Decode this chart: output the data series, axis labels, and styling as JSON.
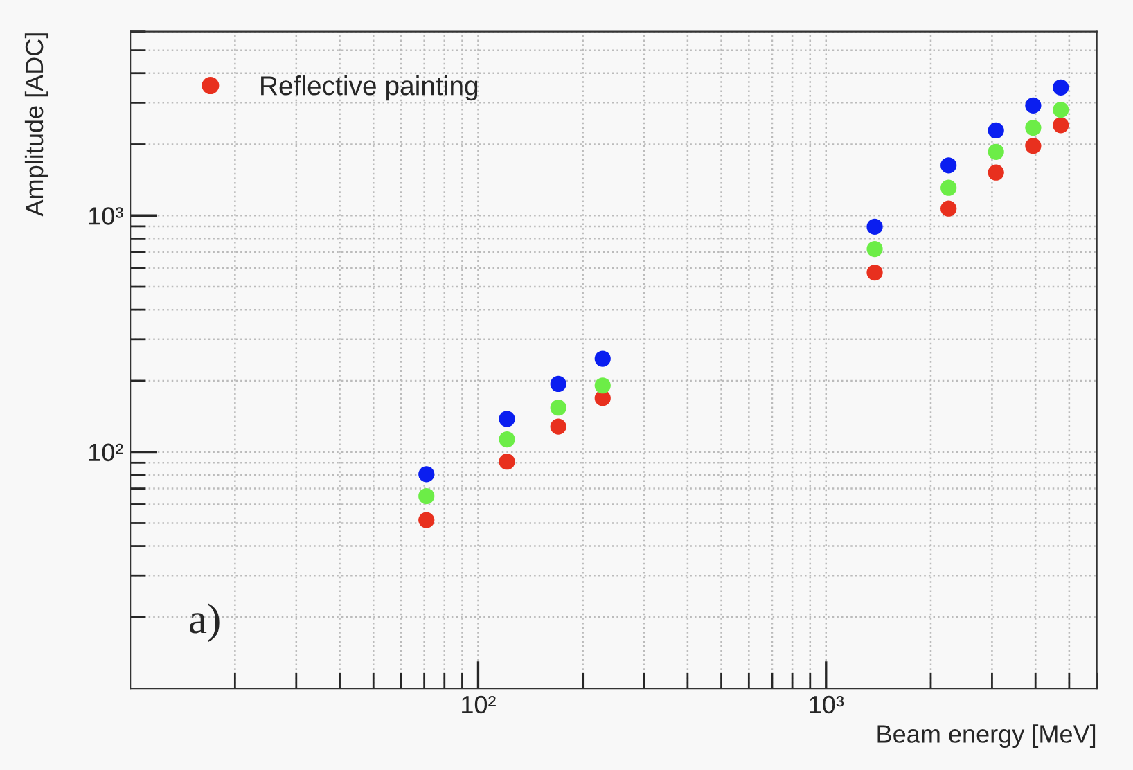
{
  "chart_data": {
    "type": "scatter",
    "xlabel": "Beam energy [MeV]",
    "ylabel": "Amplitude [ADC]",
    "x": [
      71,
      121,
      170,
      228,
      1380,
      2250,
      3080,
      3940,
      4730
    ],
    "series": [
      {
        "name": "Reflective painting",
        "color": "#e8301e",
        "values": [
          51.5,
          91,
          128,
          169,
          574,
          1070,
          1520,
          1970,
          2410
        ]
      },
      {
        "color": "#0a1ef0",
        "values": [
          80.5,
          138,
          194,
          248,
          897,
          1630,
          2290,
          2920,
          3480
        ]
      },
      {
        "color": "#6ced47",
        "values": [
          65,
          113,
          154,
          191,
          722,
          1310,
          1860,
          2350,
          2800
        ]
      }
    ],
    "log": "xy",
    "xlim": [
      10,
      6000
    ],
    "ylim": [
      10,
      6000
    ],
    "xticks": [
      {
        "value": 100,
        "label": "10²"
      },
      {
        "value": 1000,
        "label": "10³"
      }
    ],
    "yticks": [
      {
        "value": 100,
        "label": "10²"
      },
      {
        "value": 1000,
        "label": "10³"
      }
    ],
    "grid": true,
    "legend": "top left",
    "marker": "circle",
    "annotations": [
      "a)"
    ]
  }
}
